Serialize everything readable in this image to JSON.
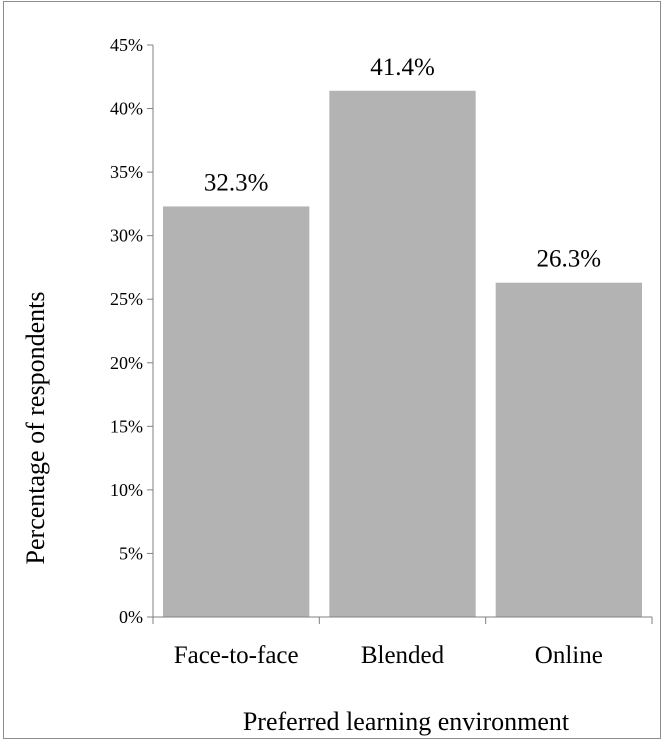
{
  "chart_data": {
    "type": "bar",
    "categories": [
      "Face-to-face",
      "Blended",
      "Online"
    ],
    "values": [
      32.3,
      41.4,
      26.3
    ],
    "data_labels": [
      "32.3%",
      "41.4%",
      "26.3%"
    ],
    "title": "",
    "xlabel": "Preferred learning environment",
    "ylabel": "Percentage of respondents",
    "ylim": [
      0,
      45
    ],
    "yticks": [
      0,
      5,
      10,
      15,
      20,
      25,
      30,
      35,
      40,
      45
    ],
    "ytick_labels": [
      "0%",
      "5%",
      "10%",
      "15%",
      "20%",
      "25%",
      "30%",
      "35%",
      "40%",
      "45%"
    ],
    "grid": false,
    "legend": "none",
    "bar_color": "#b3b3b3",
    "axis_color": "#808080"
  }
}
